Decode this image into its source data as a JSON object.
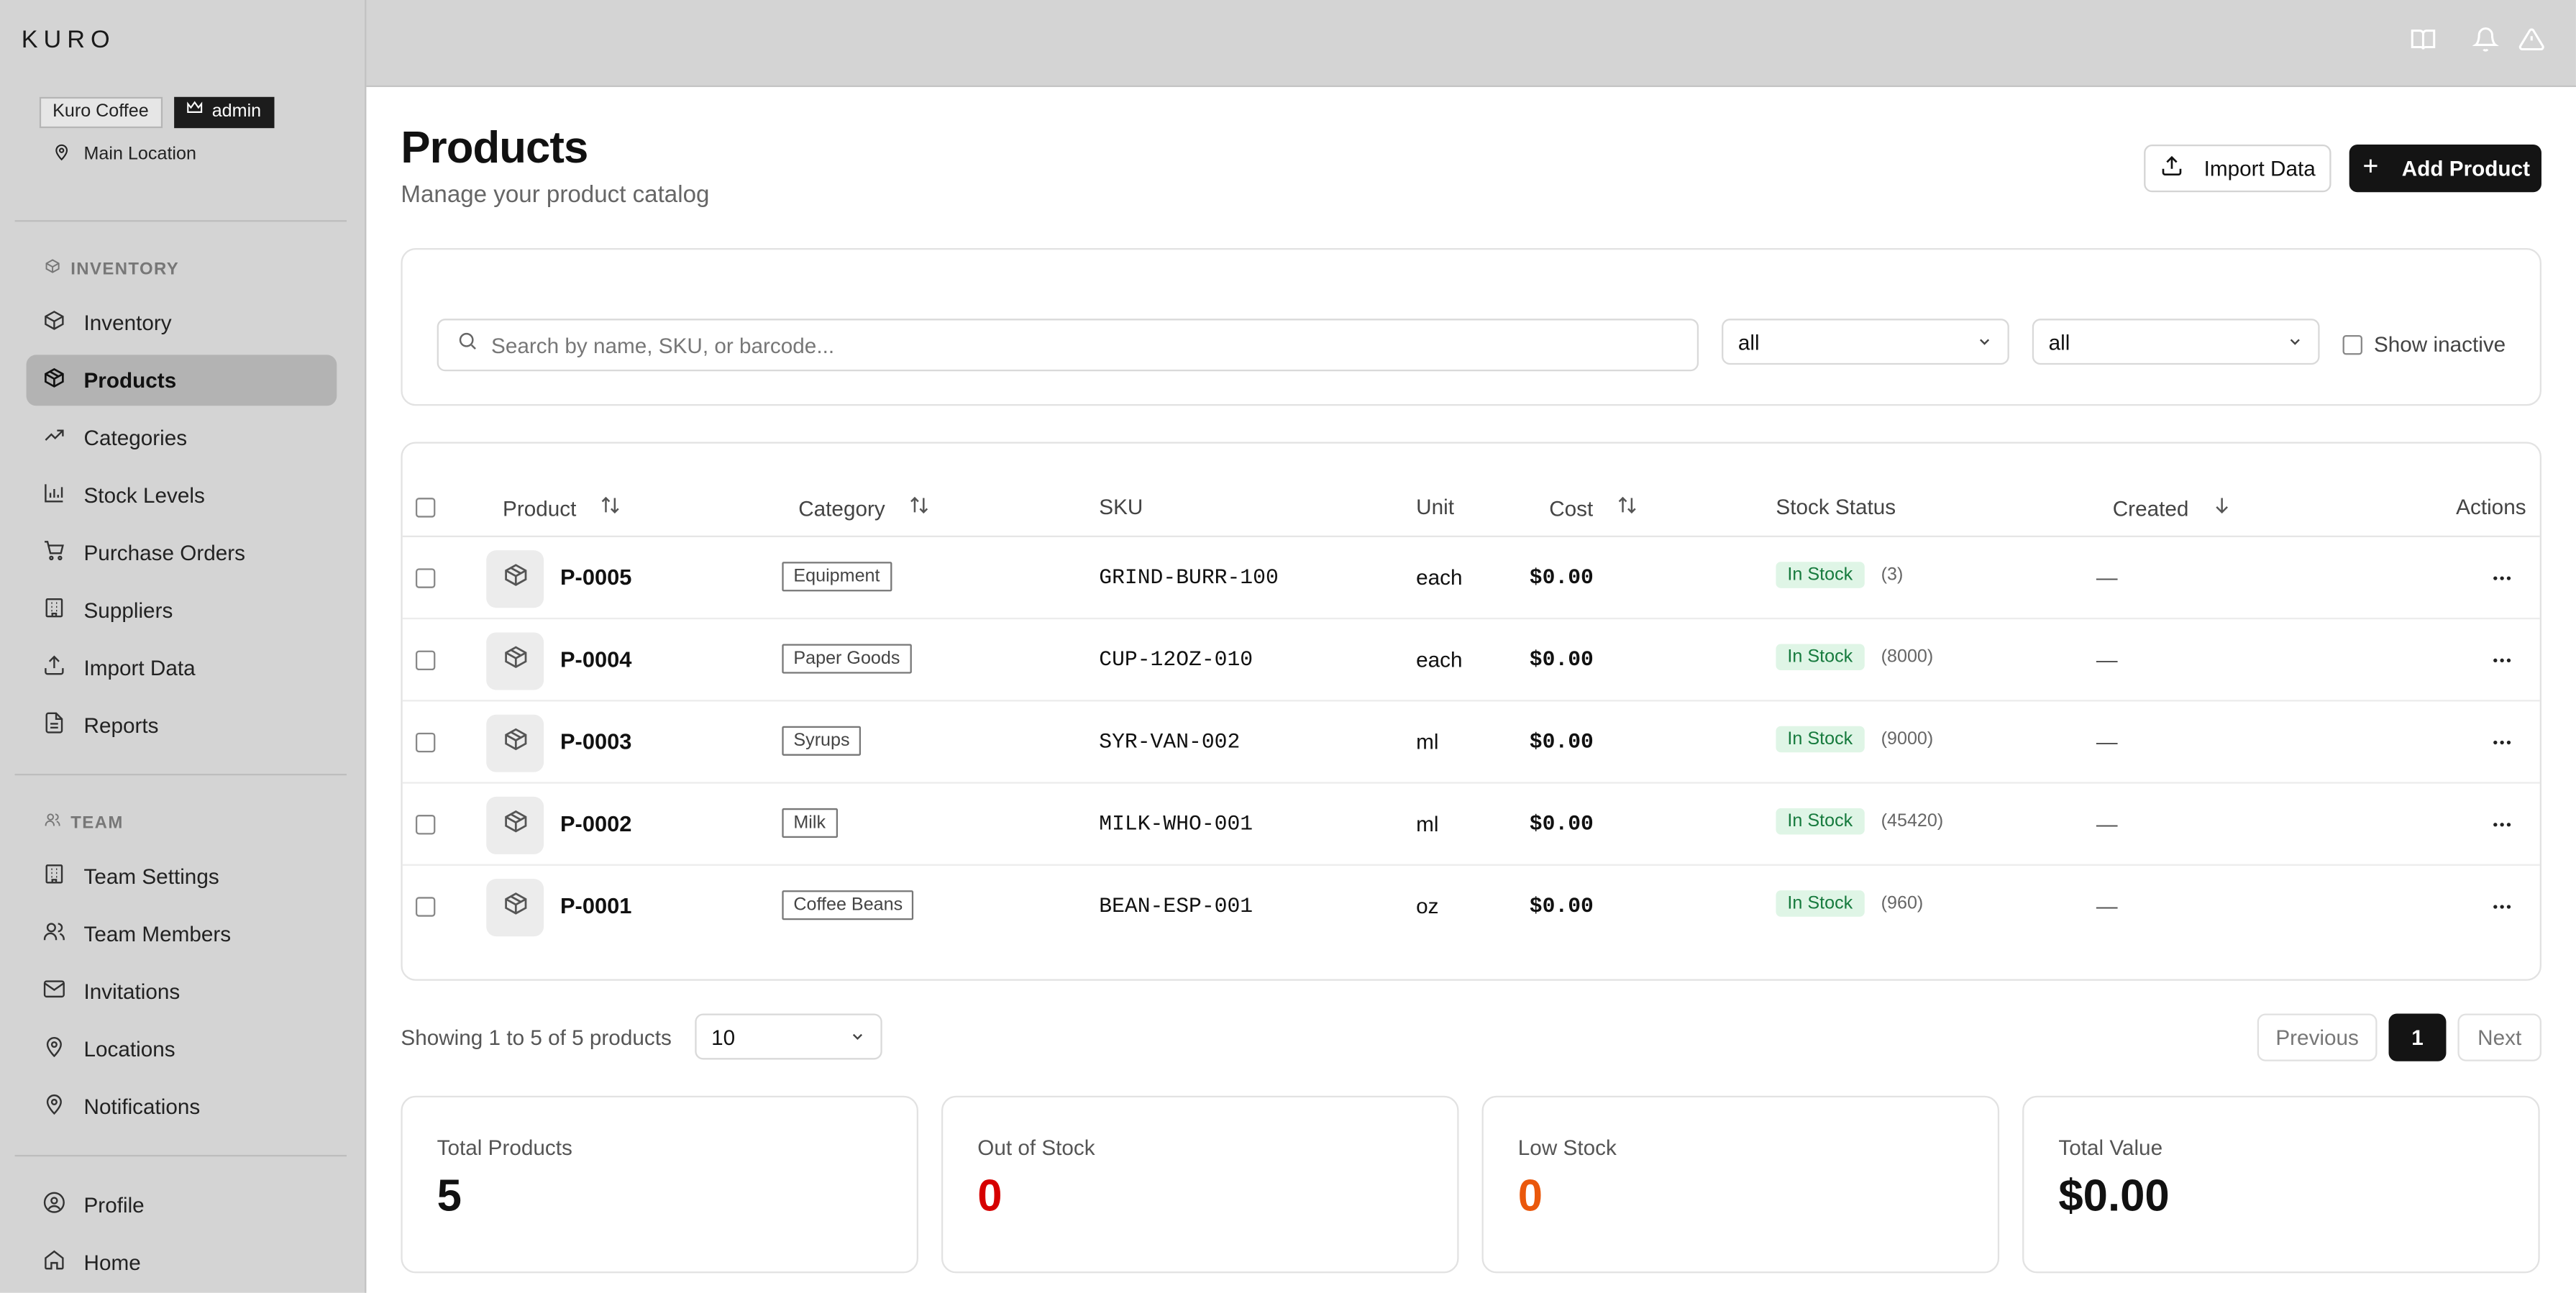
{
  "app": {
    "logo": "KURO"
  },
  "org": {
    "name": "Kuro Coffee",
    "role": "admin",
    "location": "Main Location"
  },
  "sidebar": {
    "sections": [
      {
        "title": "INVENTORY",
        "items": [
          {
            "label": "Inventory",
            "icon": "box-icon"
          },
          {
            "label": "Products",
            "icon": "package-icon",
            "active": true
          },
          {
            "label": "Categories",
            "icon": "trending-icon"
          },
          {
            "label": "Stock Levels",
            "icon": "bar-chart-icon"
          },
          {
            "label": "Purchase Orders",
            "icon": "cart-icon"
          },
          {
            "label": "Suppliers",
            "icon": "building-icon"
          },
          {
            "label": "Import Data",
            "icon": "upload-icon"
          },
          {
            "label": "Reports",
            "icon": "file-icon"
          }
        ]
      },
      {
        "title": "TEAM",
        "items": [
          {
            "label": "Team Settings",
            "icon": "building-icon"
          },
          {
            "label": "Team Members",
            "icon": "users-icon"
          },
          {
            "label": "Invitations",
            "icon": "mail-icon"
          },
          {
            "label": "Locations",
            "icon": "map-pin-icon"
          },
          {
            "label": "Notifications",
            "icon": "map-pin-icon"
          }
        ]
      },
      {
        "title": "",
        "items": [
          {
            "label": "Profile",
            "icon": "user-circle-icon"
          },
          {
            "label": "Home",
            "icon": "home-icon"
          }
        ]
      }
    ]
  },
  "topbar": {
    "icons": [
      "book-icon",
      "bell-icon",
      "alert-triangle-icon"
    ]
  },
  "page": {
    "title": "Products",
    "subtitle": "Manage your product catalog",
    "import_label": "Import Data",
    "add_label": "Add Product"
  },
  "filters": {
    "search_placeholder": "Search by name, SKU, or barcode...",
    "category_value": "all",
    "status_value": "all",
    "show_inactive_label": "Show inactive"
  },
  "table": {
    "headers": {
      "product": "Product",
      "category": "Category",
      "sku": "SKU",
      "unit": "Unit",
      "cost": "Cost",
      "stock_status": "Stock Status",
      "created": "Created",
      "actions": "Actions"
    },
    "rows": [
      {
        "name": "P-0005",
        "category": "Equipment",
        "sku": "GRIND-BURR-100",
        "unit": "each",
        "cost": "$0.00",
        "status": "In Stock",
        "qty": "(3)",
        "created": "—"
      },
      {
        "name": "P-0004",
        "category": "Paper Goods",
        "sku": "CUP-12OZ-010",
        "unit": "each",
        "cost": "$0.00",
        "status": "In Stock",
        "qty": "(8000)",
        "created": "—"
      },
      {
        "name": "P-0003",
        "category": "Syrups",
        "sku": "SYR-VAN-002",
        "unit": "ml",
        "cost": "$0.00",
        "status": "In Stock",
        "qty": "(9000)",
        "created": "—"
      },
      {
        "name": "P-0002",
        "category": "Milk",
        "sku": "MILK-WHO-001",
        "unit": "ml",
        "cost": "$0.00",
        "status": "In Stock",
        "qty": "(45420)",
        "created": "—"
      },
      {
        "name": "P-0001",
        "category": "Coffee Beans",
        "sku": "BEAN-ESP-001",
        "unit": "oz",
        "cost": "$0.00",
        "status": "In Stock",
        "qty": "(960)",
        "created": "—"
      }
    ]
  },
  "pagination": {
    "showing": "Showing 1 to 5 of 5 products",
    "per_page": "10",
    "previous": "Previous",
    "current": "1",
    "next": "Next"
  },
  "stats": [
    {
      "label": "Total Products",
      "value": "5",
      "color": "#111111"
    },
    {
      "label": "Out of Stock",
      "value": "0",
      "color": "#d60000"
    },
    {
      "label": "Low Stock",
      "value": "0",
      "color": "#ea580c"
    },
    {
      "label": "Total Value",
      "value": "$0.00",
      "color": "#111111"
    }
  ]
}
